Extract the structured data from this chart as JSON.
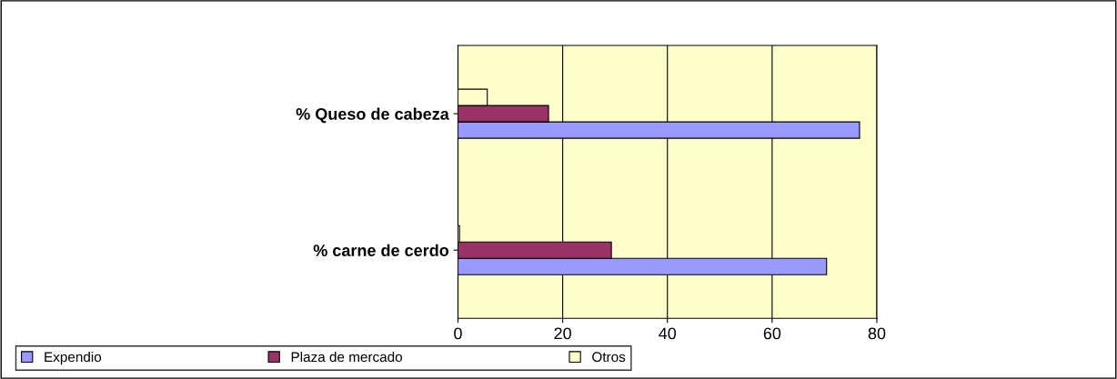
{
  "chart_data": {
    "type": "bar",
    "orientation": "horizontal",
    "categories": [
      "% Queso de cabeza",
      "% carne de cerdo"
    ],
    "series": [
      {
        "name": "Expendio",
        "color": "#9999ff",
        "values": [
          76.7,
          70.4
        ]
      },
      {
        "name": "Plaza de mercado",
        "color": "#993366",
        "values": [
          17.3,
          29.3
        ]
      },
      {
        "name": "Otros",
        "color": "#ffffcc",
        "values": [
          5.6,
          0.3
        ]
      }
    ],
    "xlim": [
      0,
      80
    ],
    "xticks": [
      0,
      20,
      40,
      60,
      80
    ],
    "grid": "x",
    "legend": "bottom"
  }
}
